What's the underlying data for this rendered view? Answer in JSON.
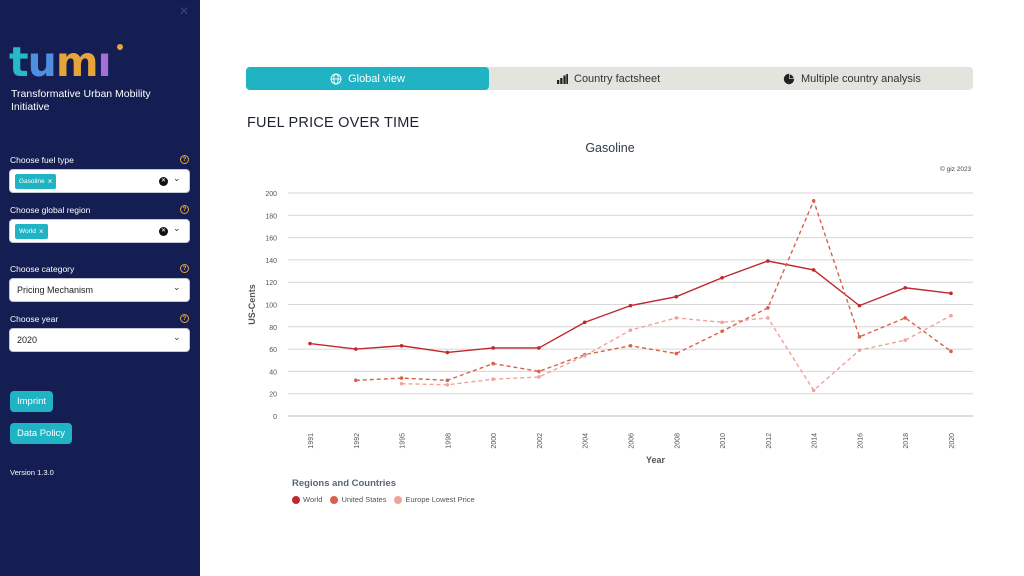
{
  "sidebar": {
    "logo_text": "tumi",
    "org_name": "Transformative Urban Mobility Initiative",
    "fuel_type": {
      "label": "Choose fuel type",
      "selected": "Gasoline"
    },
    "region": {
      "label": "Choose global region",
      "selected": "World"
    },
    "category": {
      "label": "Choose category",
      "value": "Pricing Mechanism"
    },
    "year": {
      "label": "Choose year",
      "value": "2020"
    },
    "imprint_label": "Imprint",
    "data_policy_label": "Data Policy",
    "version": "Version 1.3.0"
  },
  "tabs": [
    {
      "label": "Global view",
      "icon": "globe-icon",
      "active": true
    },
    {
      "label": "Country factsheet",
      "icon": "bar-chart-icon",
      "active": false
    },
    {
      "label": "Multiple country analysis",
      "icon": "pie-chart-icon",
      "active": false
    }
  ],
  "page_title": "FUEL PRICE OVER TIME",
  "copyright": "© giz 2023",
  "colors": {
    "sidebar": "#141e52",
    "accent": "#1fb3c3",
    "world": "#c0282d",
    "us": "#d9604a",
    "europe": "#eea39a"
  },
  "chart_data": {
    "type": "line",
    "title": "Gasoline",
    "xlabel": "Year",
    "ylabel": "US-Cents",
    "ylim": [
      0,
      200
    ],
    "yticks": [
      0,
      20,
      40,
      60,
      80,
      100,
      120,
      140,
      160,
      180,
      200
    ],
    "categories": [
      "1991",
      "1992",
      "1995",
      "1998",
      "2000",
      "2002",
      "2004",
      "2006",
      "2008",
      "2010",
      "2012",
      "2014",
      "2016",
      "2018",
      "2020"
    ],
    "legend_title": "Regions and Countries",
    "grid": true,
    "legend_position": "bottom-left",
    "series": [
      {
        "name": "World",
        "color": "#c0282d",
        "dash": false,
        "values": [
          65,
          60,
          63,
          57,
          61,
          61,
          84,
          99,
          107,
          124,
          139,
          131,
          99,
          115,
          110
        ]
      },
      {
        "name": "United States",
        "color": "#d9604a",
        "dash": true,
        "values": [
          null,
          32,
          34,
          32,
          47,
          40,
          55,
          63,
          56,
          76,
          97,
          193,
          71,
          88,
          58
        ]
      },
      {
        "name": "Europe Lowest Price",
        "color": "#eea39a",
        "dash": true,
        "values": [
          null,
          null,
          29,
          28,
          33,
          35,
          54,
          77,
          88,
          84,
          88,
          23,
          59,
          68,
          90
        ]
      }
    ]
  }
}
